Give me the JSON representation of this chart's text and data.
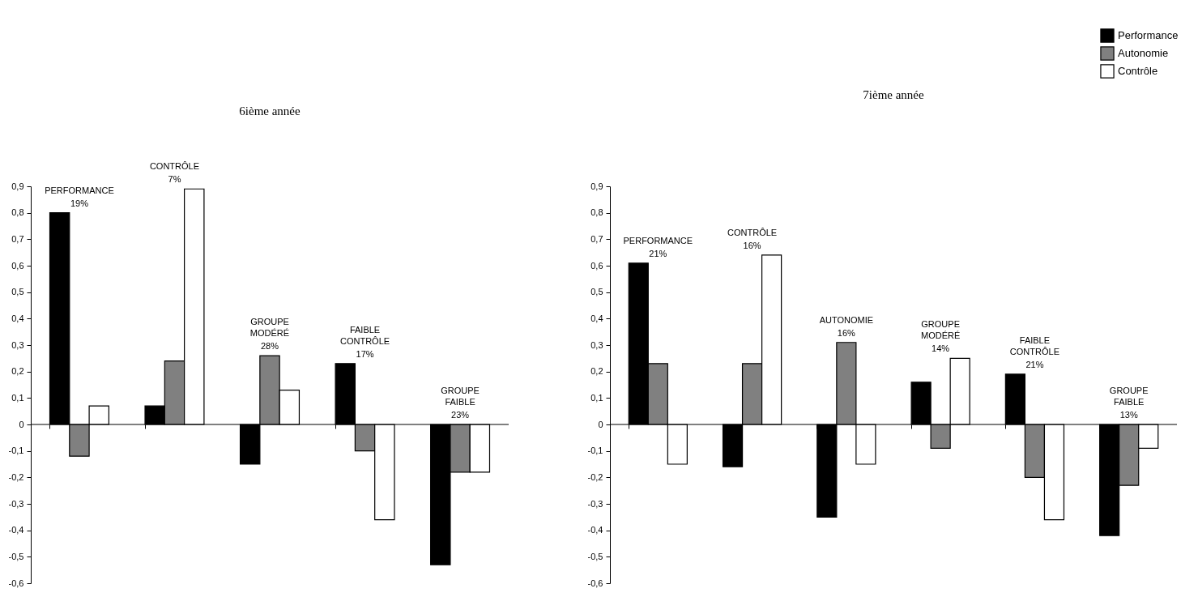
{
  "chart_data": [
    {
      "type": "bar",
      "title": "6ième année",
      "categories": [
        "PERFORMANCE",
        "CONTRÔLE",
        "GROUPE MODÉRÉ",
        "FAIBLE CONTRÔLE",
        "GROUPE FAIBLE"
      ],
      "series": [
        {
          "color": "#000000",
          "values": [
            0.8,
            0.07,
            -0.15,
            0.23,
            -0.53
          ]
        },
        {
          "color": "#808080",
          "values": [
            -0.12,
            0.24,
            0.26,
            -0.1,
            -0.18
          ]
        },
        {
          "color": "#ffffff",
          "values": [
            0.07,
            0.89,
            0.13,
            -0.36,
            -0.18
          ]
        }
      ],
      "annotations": [
        "19%",
        "7%",
        "28%",
        "17%",
        "23%"
      ],
      "ylim": [
        -0.6,
        0.9
      ],
      "yticks": [
        {
          "value": -0.6,
          "label": "-0,6"
        },
        {
          "value": -0.5,
          "label": "-0,5"
        },
        {
          "value": -0.4,
          "label": "-0,4"
        },
        {
          "value": -0.3,
          "label": "-0,3"
        },
        {
          "value": -0.2,
          "label": "-0,2"
        },
        {
          "value": -0.1,
          "label": "-0,1"
        },
        0,
        {
          "value": 0.1,
          "label": "0,1"
        },
        {
          "value": 0.2,
          "label": "0,2"
        },
        {
          "value": 0.3,
          "label": "0,3"
        },
        {
          "value": 0.4,
          "label": "0,4"
        },
        {
          "value": 0.5,
          "label": "0,5"
        },
        {
          "value": 0.6,
          "label": "0,6"
        },
        {
          "value": 0.7,
          "label": "0,7"
        },
        {
          "value": 0.8,
          "label": "0,8"
        },
        {
          "value": 0.9,
          "label": "0,9"
        }
      ],
      "ref_lines": [
        {
          "axis": "y",
          "value": 0
        }
      ],
      "grid": false,
      "legend": false
    },
    {
      "type": "bar",
      "title": "7ième année",
      "categories": [
        "PERFORMANCE",
        "CONTRÔLE",
        "AUTONOMIE",
        "GROUPE MODÉRÉ",
        "FAIBLE CONTRÔLE",
        "GROUPE FAIBLE"
      ],
      "series": [
        {
          "name": "Performance",
          "color": "#000000",
          "values": [
            0.61,
            -0.16,
            -0.35,
            0.16,
            0.19,
            -0.42
          ]
        },
        {
          "name": "Autonomie",
          "color": "#808080",
          "values": [
            0.23,
            0.23,
            0.31,
            -0.09,
            -0.2,
            -0.23
          ]
        },
        {
          "name": "Contrôle",
          "color": "#ffffff",
          "values": [
            -0.15,
            0.64,
            -0.15,
            0.25,
            -0.36,
            -0.09
          ]
        }
      ],
      "annotations": [
        "21%",
        "16%",
        "16%",
        "14%",
        "21%",
        "13%"
      ],
      "ylim": [
        -0.6,
        0.9
      ],
      "yticks": [
        {
          "value": -0.6,
          "label": "-0,6"
        },
        {
          "value": -0.5,
          "label": "-0,5"
        },
        {
          "value": -0.4,
          "label": "-0,4"
        },
        {
          "value": -0.3,
          "label": "-0,3"
        },
        {
          "value": -0.2,
          "label": "-0,2"
        },
        {
          "value": -0.1,
          "label": "-0,1"
        },
        0,
        {
          "value": 0.1,
          "label": "0,1"
        },
        {
          "value": 0.2,
          "label": "0,2"
        },
        {
          "value": 0.3,
          "label": "0,3"
        },
        {
          "value": 0.4,
          "label": "0,4"
        },
        {
          "value": 0.5,
          "label": "0,5"
        },
        {
          "value": 0.6,
          "label": "0,6"
        },
        {
          "value": 0.7,
          "label": "0,7"
        },
        {
          "value": 0.8,
          "label": "0,8"
        },
        {
          "value": 0.9,
          "label": "0,9"
        }
      ],
      "ref_lines": [
        {
          "axis": "y",
          "value": 0
        }
      ],
      "grid": false,
      "legend": "top right"
    }
  ]
}
